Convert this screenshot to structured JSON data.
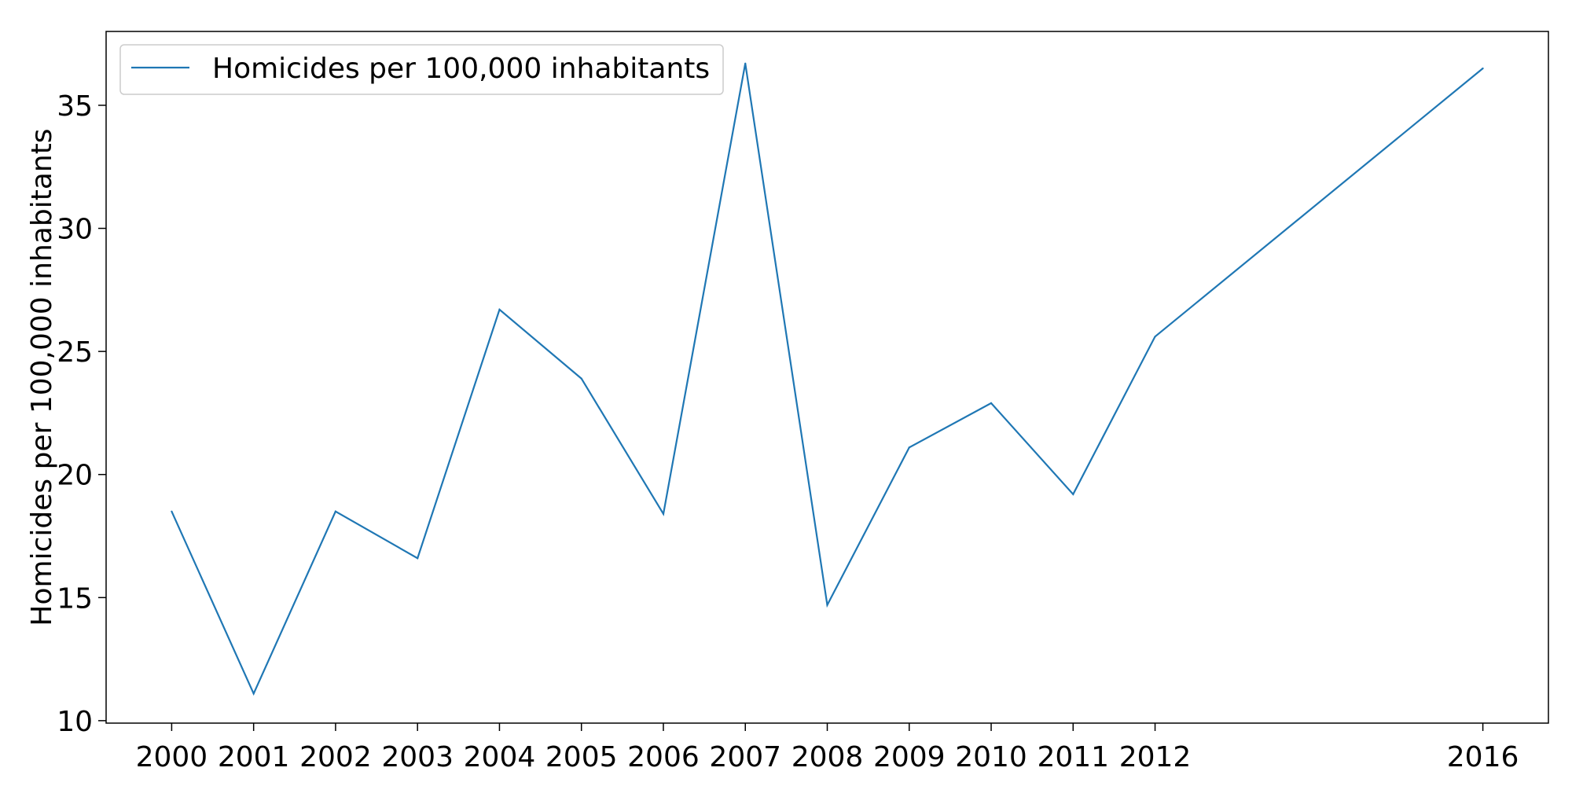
{
  "chart_data": {
    "type": "line",
    "title": "",
    "xlabel": "",
    "ylabel": "Homicides per 100,000 inhabitants",
    "x": [
      2000,
      2001,
      2002,
      2003,
      2004,
      2005,
      2006,
      2007,
      2008,
      2009,
      2010,
      2011,
      2012,
      2016
    ],
    "series": [
      {
        "name": "Homicides per 100,000 inhabitants",
        "color": "#1f77b4",
        "values": [
          18.5,
          11.1,
          18.5,
          16.6,
          26.7,
          23.9,
          18.4,
          36.7,
          14.7,
          21.1,
          22.9,
          19.2,
          25.6,
          36.5
        ]
      }
    ],
    "xlim": [
      1999.2,
      2016.8
    ],
    "ylim": [
      9.9,
      38.0
    ],
    "xticks": [
      2000,
      2001,
      2002,
      2003,
      2004,
      2005,
      2006,
      2007,
      2008,
      2009,
      2010,
      2011,
      2012,
      2016
    ],
    "yticks": [
      10,
      15,
      20,
      25,
      30,
      35
    ],
    "grid": false,
    "legend_position": "top-left"
  }
}
